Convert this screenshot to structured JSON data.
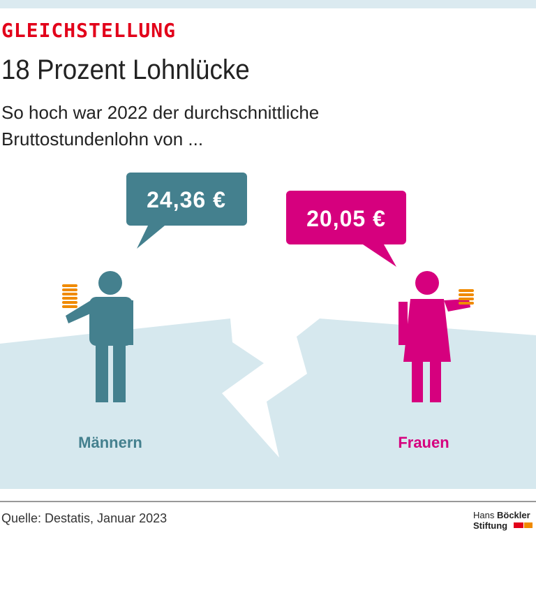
{
  "header": {
    "kicker": "GLEICHSTELLUNG",
    "title": "18 Prozent Lohnlücke",
    "subtitle": [
      "So hoch war 2022 der durchschnittliche",
      "Bruttostundenlohn von ..."
    ]
  },
  "groups": [
    {
      "label": "Männern",
      "value": "24,36 €"
    },
    {
      "label": "Frauen",
      "value": "20,05 €"
    }
  ],
  "footer": {
    "source": "Quelle: Destatis, Januar 2023",
    "logo": [
      "Hans",
      "Böckler",
      "Stiftung"
    ]
  }
}
